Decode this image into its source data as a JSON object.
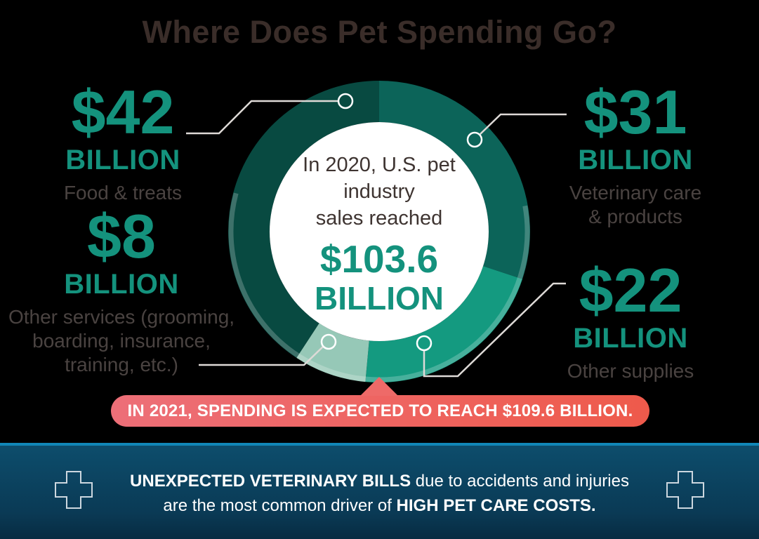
{
  "title": "Where Does Pet Spending Go?",
  "chart_data": {
    "type": "pie",
    "subtype": "donut",
    "title": "Where Does Pet Spending Go?",
    "units": "USD billions",
    "total_label": "$103.6 BILLION",
    "total_value": 103.6,
    "start_angle_deg": 0,
    "direction": "clockwise",
    "segments": [
      {
        "label": "Veterinary care & products",
        "value": 31,
        "display": "$31 BILLION",
        "color": "#0c6459"
      },
      {
        "label": "Other supplies",
        "value": 22,
        "display": "$22 BILLION",
        "color": "#149a80"
      },
      {
        "label": "Other services (grooming, boarding, insurance, training, etc.)",
        "value": 8,
        "display": "$8 BILLION",
        "color": "#96c8b7"
      },
      {
        "label": "Food & treats",
        "value": 42,
        "display": "$42 BILLION",
        "color": "#084a41"
      }
    ]
  },
  "center": {
    "line1": "In 2020, U.S. pet",
    "line2": "industry",
    "line3": "sales reached",
    "value": "$103.6",
    "unit": "BILLION"
  },
  "callouts": {
    "food": {
      "amount": "$42",
      "unit": "BILLION",
      "label": "Food & treats"
    },
    "vet": {
      "amount": "$31",
      "unit": "BILLION",
      "label_line1": "Veterinary care",
      "label_line2": "& products"
    },
    "services": {
      "amount": "$8",
      "unit": "BILLION",
      "label_line1": "Other services (grooming,",
      "label_line2": "boarding, insurance,",
      "label_line3": "training, etc.)"
    },
    "supplies": {
      "amount": "$22",
      "unit": "BILLION",
      "label": "Other supplies"
    }
  },
  "banner": {
    "text": "IN 2021, SPENDING IS EXPECTED TO REACH $109.6 BILLION."
  },
  "footer": {
    "bold1": "UNEXPECTED VETERINARY BILLS",
    "regular1": " due to accidents and injuries",
    "regular2": "are the most common driver of ",
    "bold2": "HIGH PET CARE COSTS."
  },
  "colors": {
    "accent_teal": "#14927d",
    "title_brown": "#3a2d29",
    "desc_gray": "#4a4341",
    "banner_left": "#ed6f78",
    "banner_right": "#ee5a4b",
    "footer_border_blue": "#1187b8",
    "footer_bg_blue": "#0d4d6c",
    "background": "#000000"
  }
}
